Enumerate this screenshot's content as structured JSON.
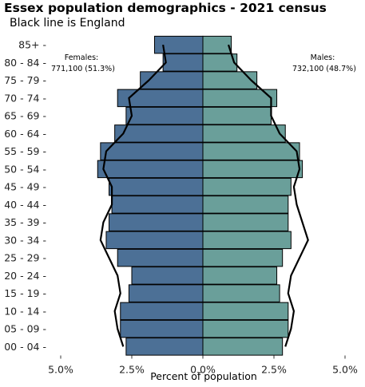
{
  "title": "Essex population demographics - 2021 census",
  "subtitle": "Black line is England",
  "annotations": {
    "females_label": "Females:",
    "females_value": "771,100 (51.3%)",
    "males_label": "Males:",
    "males_value": "732,100 (48.7%)"
  },
  "colors": {
    "female_bar": "#4c7096",
    "male_bar": "#6a9f9a",
    "england_line": "#000000"
  },
  "chart_data": {
    "type": "bar",
    "orientation": "horizontal-population-pyramid",
    "title": "Essex population demographics - 2021 census",
    "subtitle": "Black line is England",
    "xlabel": "Percent of population",
    "ylabel": "",
    "xlim": [
      -5.0,
      5.0
    ],
    "xtick_values": [
      -5.0,
      -2.5,
      0.0,
      2.5,
      5.0
    ],
    "xtick_labels": [
      "5.0%",
      "2.5%",
      "0.0%",
      "2.5%",
      "5.0%"
    ],
    "grid": false,
    "categories": [
      "85+",
      "80 - 84",
      "75 - 79",
      "70 - 74",
      "65 - 69",
      "60 - 64",
      "55 - 59",
      "50 - 54",
      "45 - 49",
      "40 - 44",
      "35 - 39",
      "30 - 34",
      "25 - 29",
      "20 - 24",
      "15 - 19",
      "10 - 14",
      "05 - 09",
      "00 - 04"
    ],
    "category_labels": [
      "85+ -",
      "80 - 84 -",
      "75 - 79 -",
      "70 - 74 -",
      "65 - 69 -",
      "60 - 64 -",
      "55 - 59 -",
      "50 - 54 -",
      "45 - 49 -",
      "40 - 44 -",
      "35 - 39 -",
      "30 - 34 -",
      "25 - 29 -",
      "20 - 24 -",
      "15 - 19 -",
      "10 - 14 -",
      "05 - 09 -",
      "00 - 04 -"
    ],
    "series": [
      {
        "name": "Females",
        "values": [
          1.7,
          1.4,
          2.2,
          3.0,
          2.7,
          3.1,
          3.6,
          3.7,
          3.3,
          3.2,
          3.3,
          3.4,
          3.0,
          2.5,
          2.6,
          2.9,
          2.9,
          2.7
        ]
      },
      {
        "name": "Males",
        "values": [
          1.0,
          1.2,
          1.9,
          2.6,
          2.4,
          2.9,
          3.4,
          3.5,
          3.1,
          3.0,
          3.0,
          3.1,
          2.8,
          2.6,
          2.7,
          3.0,
          3.0,
          2.8
        ]
      }
    ],
    "england_line": {
      "female": [
        1.4,
        1.3,
        1.9,
        2.6,
        2.5,
        2.8,
        3.4,
        3.5,
        3.2,
        3.2,
        3.5,
        3.6,
        3.3,
        3.0,
        2.9,
        3.1,
        3.0,
        2.8
      ],
      "male": [
        0.9,
        1.1,
        1.7,
        2.4,
        2.4,
        2.7,
        3.3,
        3.4,
        3.2,
        3.3,
        3.5,
        3.7,
        3.4,
        3.1,
        3.0,
        3.2,
        3.1,
        2.9
      ]
    },
    "legend": "none"
  }
}
